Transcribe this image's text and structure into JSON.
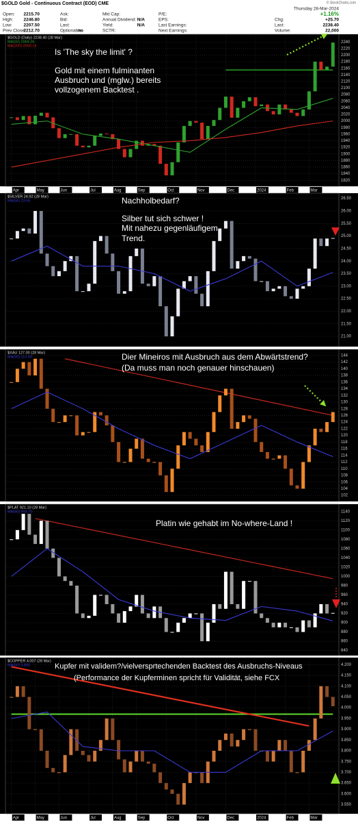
{
  "header": {
    "title": "$GOLD Gold - Continuous Contract (EOD) CME",
    "date": "Thursday 28-Mar-2024",
    "copyright": "© StockCharts.com",
    "change": "+1.16%",
    "fields": [
      {
        "label": "Open:",
        "value": "2215.70"
      },
      {
        "label": "High:",
        "value": "2246.80"
      },
      {
        "label": "Low:",
        "value": "2207.50"
      },
      {
        "label": "Prev Close:",
        "value": "2212.70"
      },
      {
        "label": "Ask:"
      },
      {
        "label": "Bid:"
      },
      {
        "label": "Last:"
      },
      {
        "label": "Optionable:",
        "value": "no"
      },
      {
        "label": "Mkt Cap:"
      },
      {
        "label": "Annual Dividend:",
        "value": "N/A"
      },
      {
        "label": "Yield:",
        "value": "N/A"
      },
      {
        "label": "SCTR:"
      },
      {
        "label": "P/E:"
      },
      {
        "label": "EPS:"
      },
      {
        "label": "Last Earnings:"
      },
      {
        "label": "Next Earnings:"
      },
      {
        "label": "Chg:",
        "value": "+25.70"
      },
      {
        "label": "Last:",
        "value": "2238.40"
      },
      {
        "label": "Volume:",
        "value": "22,000"
      }
    ]
  },
  "chart_data": [
    {
      "type": "candlestick",
      "xlim": [
        -1,
        55
      ],
      "ylim": [
        1810,
        2255
      ],
      "yticks": [
        1820,
        1840,
        1860,
        1880,
        1900,
        1920,
        1940,
        1960,
        1980,
        2000,
        2020,
        2040,
        2060,
        2080,
        2100,
        2120,
        2140,
        2160,
        2180,
        2200,
        2220,
        2240
      ],
      "xticks": [
        {
          "value": 0,
          "label": "Apr"
        },
        {
          "value": 4,
          "label": "May"
        },
        {
          "value": 8,
          "label": "Jun"
        },
        {
          "value": 13,
          "label": "Jul"
        },
        {
          "value": 17,
          "label": "Aug"
        },
        {
          "value": 21,
          "label": "Sep"
        },
        {
          "value": 26,
          "label": "Oct"
        },
        {
          "value": 31,
          "label": "Nov"
        },
        {
          "value": 36,
          "label": "Dec"
        },
        {
          "value": 41,
          "label": "2024"
        },
        {
          "value": 46,
          "label": "Feb"
        },
        {
          "value": 50,
          "label": "Mar"
        }
      ],
      "grid": true,
      "series": [
        {
          "name": "$GOLD (Daily) 2238.40 (28 Mar)",
          "color": "#2fa12f",
          "down_color": "#d0281f",
          "values": [
            2011,
            2003,
            2015,
            1990,
            2016,
            2025,
            2011,
            1978,
            1948,
            1960,
            1960,
            1925,
            1920,
            1925,
            1955,
            1962,
            1960,
            1945,
            1915,
            1890,
            1915,
            1940,
            1925,
            1930,
            1925,
            1870,
            1835,
            1875,
            1935,
            1985,
            2000,
            1995,
            1945,
            1985,
            2003,
            2040,
            2074,
            2010,
            2040,
            2060,
            2072,
            2045,
            2050,
            2030,
            2020,
            2050,
            2035,
            2025,
            2015,
            2035,
            2090,
            2180,
            2155,
            2165,
            2238
          ]
        },
        {
          "name": "MA(50) 2069.26",
          "color": "#2fa12f",
          "x": [
            0,
            6,
            12,
            18,
            24,
            30,
            36,
            42,
            48,
            54
          ],
          "values": [
            1990,
            2000,
            1960,
            1945,
            1925,
            1905,
            1975,
            2040,
            2035,
            2069
          ]
        },
        {
          "name": "MA(200) 2000.16",
          "color": "#d0281f",
          "x": [
            0,
            6,
            12,
            18,
            24,
            30,
            36,
            42,
            48,
            54
          ],
          "values": [
            1860,
            1880,
            1900,
            1920,
            1935,
            1940,
            1950,
            1965,
            1985,
            2000
          ]
        }
      ],
      "lines": [
        {
          "color": "#2fc02f",
          "x": [
            36,
            54
          ],
          "values": [
            2155,
            2155
          ]
        }
      ],
      "annotations": [
        "Is 'The sky the limit' ?",
        "Gold mit einem fulminanten",
        "Ausbruch und (mglw.) bereits",
        "vollzogenem Backtest ."
      ]
    },
    {
      "type": "candlestick",
      "xlim": [
        -1,
        55
      ],
      "ylim": [
        20.7,
        26.6
      ],
      "yticks": [
        {
          "value": 21,
          "label": "21.00"
        },
        {
          "value": 21.5,
          "label": "21.50"
        },
        {
          "value": 22,
          "label": "22.00"
        },
        {
          "value": 22.5,
          "label": "22.50"
        },
        {
          "value": 23,
          "label": "23.00"
        },
        {
          "value": 23.5,
          "label": "23.50"
        },
        {
          "value": 24,
          "label": "24.00"
        },
        {
          "value": 24.5,
          "label": "24.50"
        },
        {
          "value": 25,
          "label": "25.00"
        },
        {
          "value": 25.5,
          "label": "25.50"
        },
        {
          "value": 26,
          "label": "26.00"
        },
        {
          "value": 26.5,
          "label": "26.50"
        }
      ],
      "grid": true,
      "series": [
        {
          "name": "$SILVER 24.92 (28 Mar)",
          "color": "#e8e8f0",
          "down_color": "#7a8090",
          "values": [
            24.9,
            25.2,
            25.3,
            25.1,
            26.0,
            24.3,
            23.8,
            23.4,
            23.6,
            24.0,
            24.2,
            22.8,
            22.8,
            23.1,
            24.8,
            25.0,
            24.3,
            23.6,
            22.7,
            22.8,
            24.2,
            24.5,
            23.1,
            23.0,
            23.4,
            22.2,
            21.0,
            21.8,
            22.9,
            23.2,
            23.4,
            22.7,
            22.2,
            23.6,
            24.8,
            25.3,
            25.6,
            23.7,
            24.0,
            24.2,
            24.1,
            23.2,
            23.2,
            22.8,
            22.9,
            23.0,
            22.6,
            22.5,
            22.9,
            23.0,
            23.7,
            24.9,
            24.6,
            24.9,
            24.92
          ]
        },
        {
          "name": "MA(50) 23.55",
          "color": "#3a3ad8",
          "x": [
            0,
            6,
            12,
            18,
            24,
            30,
            36,
            42,
            48,
            54
          ],
          "values": [
            24.0,
            24.6,
            23.8,
            23.8,
            23.5,
            22.8,
            23.3,
            24.0,
            23.0,
            23.55
          ]
        }
      ],
      "annotations": [
        "Nachholbedarf?",
        "Silber tut sich schwer !",
        "Mit nahezu gegenläufigem",
        "Trend."
      ]
    },
    {
      "type": "candlestick",
      "xlim": [
        -1,
        55
      ],
      "ylim": [
        101,
        145
      ],
      "yticks": [
        102,
        104,
        106,
        108,
        110,
        112,
        114,
        116,
        118,
        120,
        122,
        124,
        126,
        128,
        130,
        132,
        134,
        136,
        138,
        140,
        142,
        144
      ],
      "grid": true,
      "series": [
        {
          "name": "$XAU 127.00 (28 Mar)",
          "color": "#f08a2a",
          "down_color": "#a8501a",
          "values": [
            136,
            140,
            142,
            138,
            143,
            134,
            128,
            124,
            124,
            126,
            126,
            120,
            121,
            121,
            127,
            126,
            123,
            118,
            112,
            112,
            116,
            119,
            113,
            112,
            112,
            108,
            103,
            110,
            117,
            121,
            119,
            117,
            115,
            121,
            127,
            132,
            134,
            122,
            124,
            126,
            125,
            118,
            115,
            113,
            113,
            114,
            110,
            105,
            104,
            112,
            117,
            122,
            121,
            124,
            127
          ]
        },
        {
          "name": "MA(50) 113.60",
          "color": "#3a3ad8",
          "x": [
            0,
            6,
            12,
            18,
            24,
            30,
            36,
            42,
            48,
            54
          ],
          "values": [
            128,
            133,
            128,
            122,
            117,
            113,
            118,
            123,
            118,
            113.6
          ]
        }
      ],
      "lines": [
        {
          "color": "#c8281f",
          "x": [
            9,
            54
          ],
          "values": [
            143,
            126
          ]
        }
      ],
      "annotations": [
        "Dier Mineiros mit Ausbruch aus dem Abwärtstrend?",
        "(Da muss man noch genauer hinschauen)"
      ]
    },
    {
      "type": "candlestick",
      "xlim": [
        -1,
        55
      ],
      "ylim": [
        835,
        1150
      ],
      "yticks": [
        840,
        860,
        880,
        900,
        920,
        940,
        960,
        980,
        1000,
        1020,
        1040,
        1060,
        1080,
        1100,
        1120,
        1140
      ],
      "grid": true,
      "series": [
        {
          "name": "$PLAT 921.10 (28 Mar)",
          "color": "#ffffff",
          "down_color": "#9a9a9a",
          "values": [
            1080,
            1100,
            1135,
            1090,
            1070,
            1120,
            1060,
            1040,
            1000,
            990,
            980,
            920,
            910,
            915,
            960,
            960,
            940,
            920,
            900,
            925,
            935,
            960,
            920,
            910,
            935,
            910,
            880,
            880,
            900,
            910,
            920,
            920,
            860,
            900,
            940,
            930,
            1010,
            940,
            930,
            990,
            990,
            920,
            910,
            900,
            890,
            900,
            890,
            890,
            880,
            905,
            890,
            920,
            940,
            920,
            921.1
          ]
        },
        {
          "name": "MA(50) 903.70",
          "color": "#3a3ad8",
          "x": [
            0,
            6,
            12,
            18,
            24,
            30,
            36,
            42,
            48,
            54
          ],
          "values": [
            1000,
            1060,
            1010,
            950,
            925,
            910,
            905,
            935,
            925,
            903.7
          ]
        }
      ],
      "lines": [
        {
          "color": "#c8281f",
          "x": [
            4,
            54
          ],
          "values": [
            1125,
            995
          ]
        }
      ],
      "annotations": [
        "Platin wie gehabt im No-where-Land !"
      ]
    },
    {
      "type": "candlestick",
      "xlim": [
        -1,
        55
      ],
      "ylim": [
        3.52,
        4.22
      ],
      "yticks": [
        {
          "value": 3.55,
          "label": "3.550"
        },
        {
          "value": 3.6,
          "label": "3.600"
        },
        {
          "value": 3.65,
          "label": "3.650"
        },
        {
          "value": 3.7,
          "label": "3.700"
        },
        {
          "value": 3.75,
          "label": "3.750"
        },
        {
          "value": 3.8,
          "label": "3.800"
        },
        {
          "value": 3.85,
          "label": "3.850"
        },
        {
          "value": 3.9,
          "label": "3.900"
        },
        {
          "value": 3.95,
          "label": "3.950"
        },
        {
          "value": 4,
          "label": "4.000"
        },
        {
          "value": 4.05,
          "label": "4.050"
        },
        {
          "value": 4.1,
          "label": "4.100"
        },
        {
          "value": 4.15,
          "label": "4.150"
        },
        {
          "value": 4.2,
          "label": "4.200"
        }
      ],
      "xticks": [
        {
          "value": 0,
          "label": "Apr"
        },
        {
          "value": 4,
          "label": "May"
        },
        {
          "value": 8,
          "label": "Jun"
        },
        {
          "value": 13,
          "label": "Jul"
        },
        {
          "value": 17,
          "label": "Aug"
        },
        {
          "value": 21,
          "label": "Sep"
        },
        {
          "value": 26,
          "label": "Oct"
        },
        {
          "value": 31,
          "label": "Nov"
        },
        {
          "value": 36,
          "label": "Dec"
        },
        {
          "value": 41,
          "label": "2024"
        },
        {
          "value": 46,
          "label": "Feb"
        },
        {
          "value": 50,
          "label": "Mar"
        }
      ],
      "grid": true,
      "series": [
        {
          "name": "$COPPER 4.007 (28 Mar)",
          "color": "#d0783a",
          "down_color": "#8a4a24",
          "values": [
            4.05,
            4.1,
            4.05,
            3.9,
            3.9,
            3.8,
            3.72,
            3.7,
            3.7,
            3.78,
            3.9,
            3.8,
            3.78,
            3.75,
            3.8,
            3.85,
            3.95,
            3.85,
            3.76,
            3.7,
            3.75,
            3.8,
            3.75,
            3.74,
            3.7,
            3.65,
            3.62,
            3.6,
            3.55,
            3.65,
            3.7,
            3.7,
            3.65,
            3.75,
            3.8,
            3.85,
            3.88,
            3.82,
            3.85,
            3.9,
            3.9,
            3.8,
            3.8,
            3.75,
            3.8,
            3.85,
            3.8,
            3.7,
            3.7,
            3.8,
            3.85,
            3.95,
            4.1,
            4.05,
            4.007
          ]
        },
        {
          "name": "MA(50) 3.892",
          "color": "#3a3ad8",
          "x": [
            0,
            6,
            12,
            18,
            24,
            30,
            36,
            42,
            48,
            54
          ],
          "values": [
            3.95,
            3.98,
            3.82,
            3.8,
            3.8,
            3.7,
            3.7,
            3.8,
            3.8,
            3.892
          ]
        }
      ],
      "lines": [
        {
          "color": "#5ad02a",
          "x": [
            0,
            54
          ],
          "values": [
            3.97,
            3.97
          ]
        },
        {
          "color": "#e0301f",
          "x": [
            0,
            50
          ],
          "values": [
            4.19,
            3.915
          ]
        }
      ],
      "annotations": [
        "Kupfer mit validem?/vielversprtechenden Backtest des Ausbruchs-Niveaus",
        "(Performance der Kupferminen spricht für Validität, siehe FCX"
      ]
    }
  ]
}
